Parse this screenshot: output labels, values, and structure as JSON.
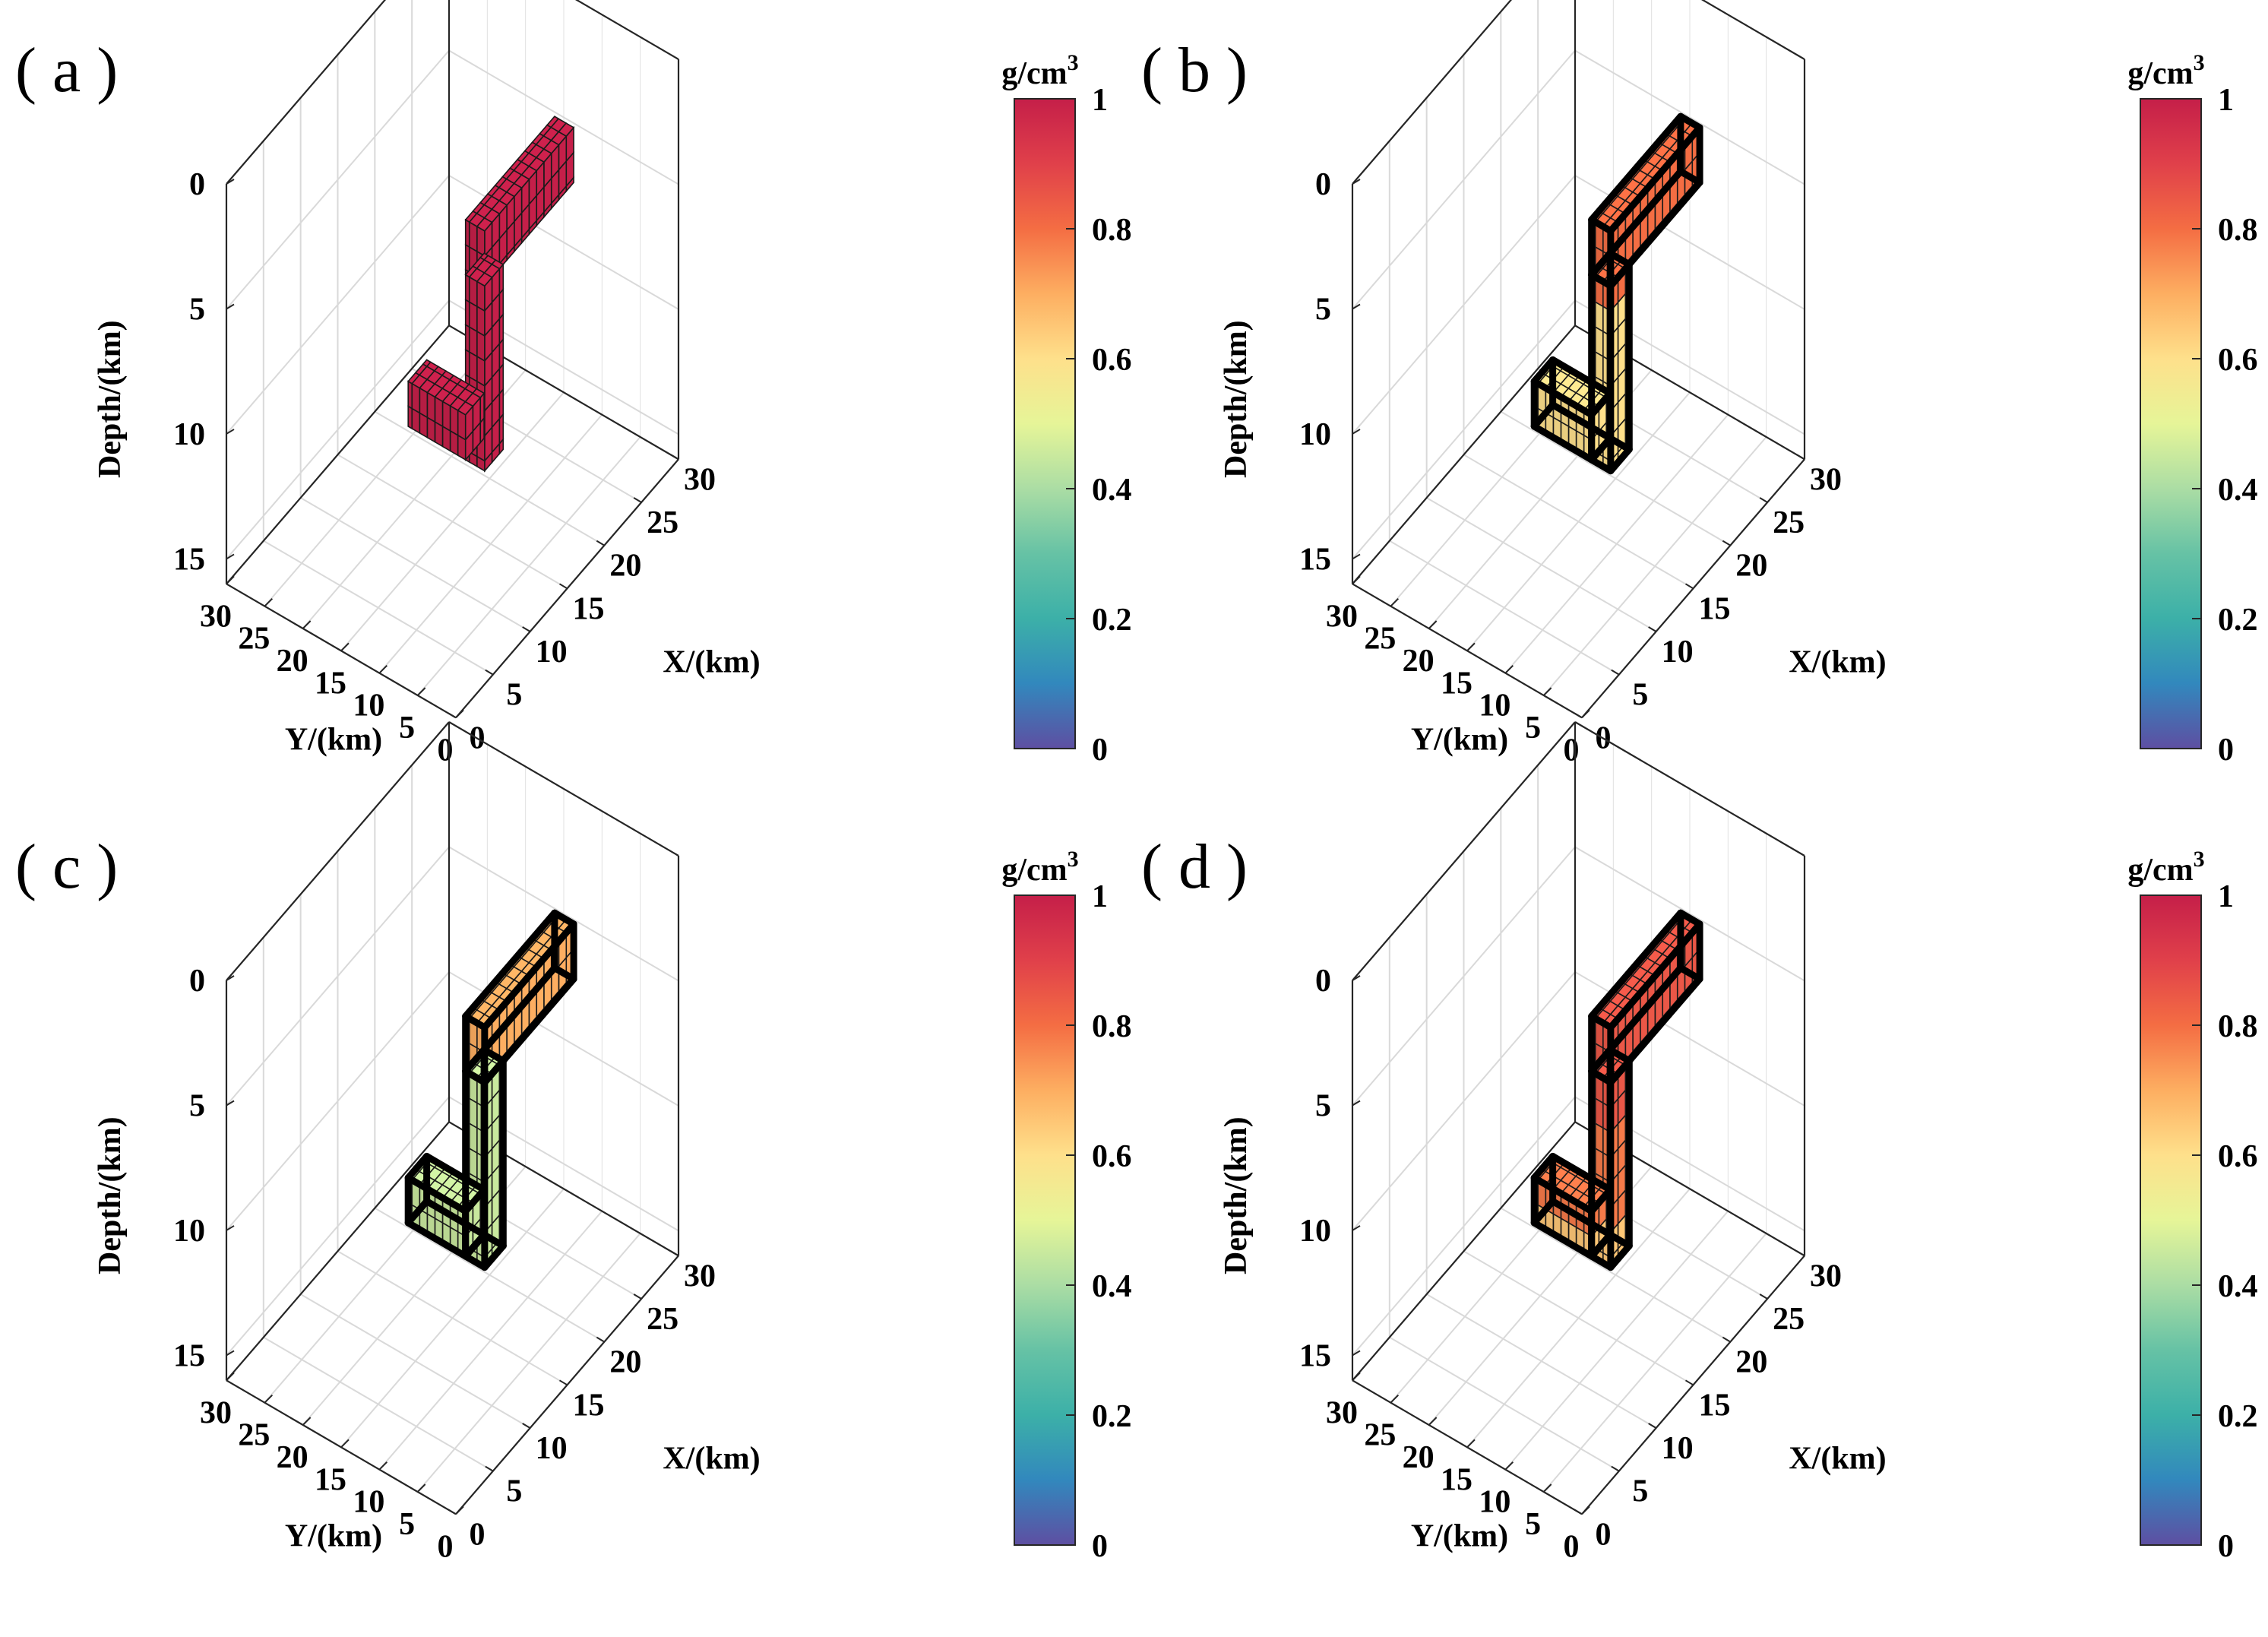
{
  "figure": {
    "description_free": true
  },
  "chart_data": [
    {
      "type": "3d-voxel",
      "panel": "( a )",
      "zlabel": "Depth/(km)",
      "xlabel": "X/(km)",
      "ylabel": "Y/(km)",
      "depth_ticks": [
        "0",
        "5",
        "10",
        "15"
      ],
      "x_ticks": [
        "0",
        "5",
        "10",
        "15",
        "20",
        "25",
        "30"
      ],
      "y_ticks": [
        "30",
        "25",
        "20",
        "15",
        "10",
        "5",
        "0"
      ],
      "xlim": [
        0,
        30
      ],
      "ylim": [
        0,
        30
      ],
      "zlim": [
        0,
        16
      ],
      "colorbar": {
        "unit": "g/cm",
        "unit_sup": "3",
        "ticks": [
          "0",
          "0.2",
          "0.4",
          "0.6",
          "0.8",
          "1"
        ],
        "range": [
          0,
          1
        ]
      },
      "density_value": 1.0,
      "model_outline": false
    },
    {
      "type": "3d-voxel",
      "panel": "( b )",
      "zlabel": "Depth/(km)",
      "xlabel": "X/(km)",
      "ylabel": "Y/(km)",
      "depth_ticks": [
        "0",
        "5",
        "10",
        "15"
      ],
      "x_ticks": [
        "0",
        "5",
        "10",
        "15",
        "20",
        "25",
        "30"
      ],
      "y_ticks": [
        "30",
        "25",
        "20",
        "15",
        "10",
        "5",
        "0"
      ],
      "xlim": [
        0,
        30
      ],
      "ylim": [
        0,
        30
      ],
      "zlim": [
        0,
        16
      ],
      "colorbar": {
        "unit": "g/cm",
        "unit_sup": "3",
        "ticks": [
          "0",
          "0.2",
          "0.4",
          "0.6",
          "0.8",
          "1"
        ],
        "range": [
          0,
          1
        ]
      },
      "density_value": 0.6,
      "top_value": 0.8,
      "model_outline": true
    },
    {
      "type": "3d-voxel",
      "panel": "( c )",
      "zlabel": "Depth/(km)",
      "xlabel": "X/(km)",
      "ylabel": "Y/(km)",
      "depth_ticks": [
        "0",
        "5",
        "10",
        "15"
      ],
      "x_ticks": [
        "0",
        "5",
        "10",
        "15",
        "20",
        "25",
        "30"
      ],
      "y_ticks": [
        "30",
        "25",
        "20",
        "15",
        "10",
        "5",
        "0"
      ],
      "xlim": [
        0,
        30
      ],
      "ylim": [
        0,
        30
      ],
      "zlim": [
        0,
        16
      ],
      "colorbar": {
        "unit": "g/cm",
        "unit_sup": "3",
        "ticks": [
          "0",
          "0.2",
          "0.4",
          "0.6",
          "0.8",
          "1"
        ],
        "range": [
          0,
          1
        ]
      },
      "density_value": 0.45,
      "top_value": 0.7,
      "model_outline": true
    },
    {
      "type": "3d-voxel",
      "panel": "( d )",
      "zlabel": "Depth/(km)",
      "xlabel": "X/(km)",
      "ylabel": "Y/(km)",
      "depth_ticks": [
        "0",
        "5",
        "10",
        "15"
      ],
      "x_ticks": [
        "0",
        "5",
        "10",
        "15",
        "20",
        "25",
        "30"
      ],
      "y_ticks": [
        "30",
        "25",
        "20",
        "15",
        "10",
        "5",
        "0"
      ],
      "xlim": [
        0,
        30
      ],
      "ylim": [
        0,
        30
      ],
      "zlim": [
        0,
        16
      ],
      "colorbar": {
        "unit": "g/cm",
        "unit_sup": "3",
        "ticks": [
          "0",
          "0.2",
          "0.4",
          "0.6",
          "0.8",
          "1"
        ],
        "range": [
          0,
          1
        ]
      },
      "density_value": 0.85,
      "bottom_value": 0.65,
      "model_outline": true
    }
  ]
}
